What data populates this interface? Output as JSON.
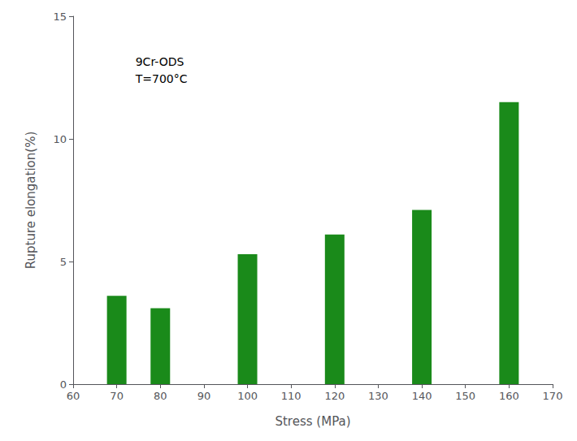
{
  "chart_data": {
    "type": "bar",
    "x": [
      70,
      80,
      100,
      120,
      140,
      160
    ],
    "values": [
      3.6,
      3.1,
      5.3,
      6.1,
      7.1,
      11.5
    ],
    "color": "#1a8a1a",
    "xlabel": "Stress (MPa)",
    "ylabel": "Rupture elongation(%)",
    "annotations": [
      "9Cr-ODS",
      "T=700°C"
    ],
    "xlim": [
      60,
      170
    ],
    "xticks": [
      60,
      70,
      80,
      90,
      100,
      110,
      120,
      130,
      140,
      150,
      160,
      170
    ],
    "ylim": [
      0,
      15
    ],
    "yticks": [
      0,
      5,
      10,
      15
    ],
    "grid": false
  }
}
